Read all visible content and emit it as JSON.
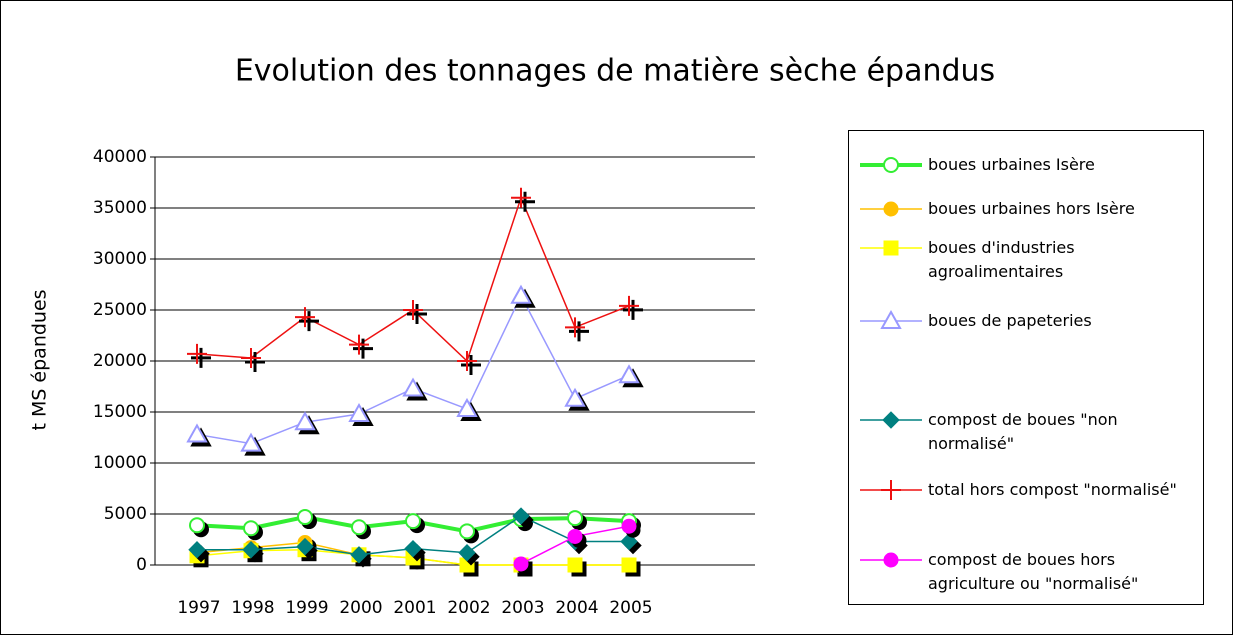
{
  "chart_data": {
    "type": "line",
    "title": "Evolution des tonnages de matière sèche épandus",
    "y_label": "t MS épandues",
    "categories": [
      "1997",
      "1998",
      "1999",
      "2000",
      "2001",
      "2002",
      "2003",
      "2004",
      "2005"
    ],
    "ylim": [
      0,
      40000
    ],
    "yticks": [
      0,
      5000,
      10000,
      15000,
      20000,
      25000,
      30000,
      35000,
      40000
    ],
    "grid": true,
    "legend": "right",
    "series": [
      {
        "name": "boues urbaines Isère",
        "color": "#33ee33",
        "marker": "circle-open",
        "width": 4,
        "values": [
          3900,
          3600,
          4700,
          3700,
          4300,
          3300,
          4500,
          4600,
          4300
        ]
      },
      {
        "name": "boues urbaines hors Isère",
        "color": "#ffc000",
        "marker": "circle",
        "width": 1.5,
        "values": [
          1200,
          1700,
          2200,
          1000,
          700,
          0,
          0,
          0,
          0
        ]
      },
      {
        "name": "boues d'industries agroalimentaires",
        "color": "#ffff00",
        "marker": "square",
        "width": 1.5,
        "values": [
          900,
          1400,
          1500,
          1000,
          700,
          0,
          0,
          0,
          0
        ]
      },
      {
        "name": "boues de papeteries",
        "color": "#9999ff",
        "marker": "triangle-open",
        "width": 1.5,
        "values": [
          12800,
          11900,
          14000,
          14800,
          17300,
          15300,
          26400,
          16300,
          18600
        ]
      },
      {
        "name": "compost de boues \"non normalisé\"",
        "color": "#008080",
        "marker": "diamond",
        "width": 1.5,
        "values": [
          1500,
          1500,
          1800,
          1000,
          1600,
          1200,
          4800,
          2300,
          2300
        ]
      },
      {
        "name": "total hors compost \"normalisé\"",
        "color": "#ee1111",
        "marker": "plus",
        "width": 1.5,
        "values": [
          20700,
          20300,
          24300,
          21600,
          25000,
          20000,
          36000,
          23300,
          25400
        ]
      },
      {
        "name": "compost de boues hors agriculture ou \"normalisé\"",
        "color": "#ff00ff",
        "marker": "circle",
        "width": 1.5,
        "values": [
          null,
          null,
          null,
          null,
          null,
          null,
          100,
          2800,
          3800
        ]
      }
    ]
  }
}
